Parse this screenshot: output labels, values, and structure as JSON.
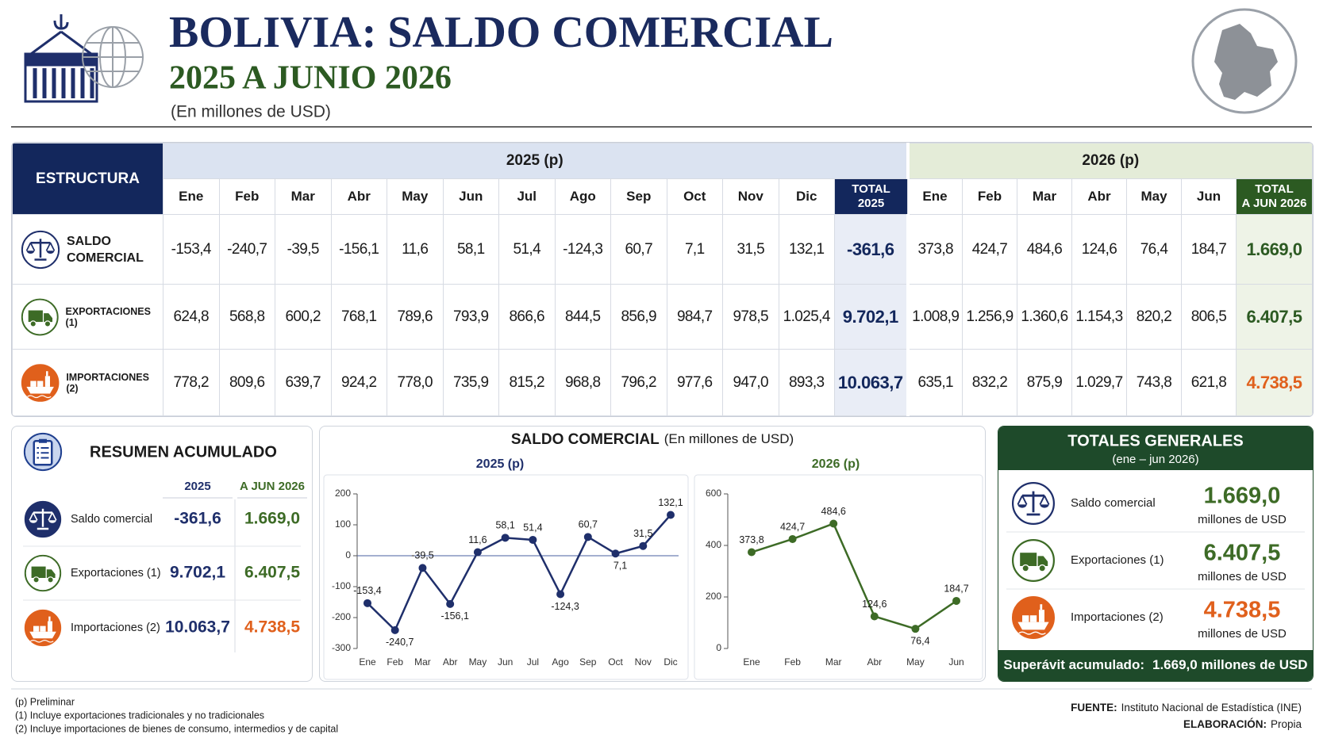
{
  "header": {
    "title": "BOLIVIA: SALDO COMERCIAL",
    "subtitle": "2025 A JUNIO 2026",
    "unit": "(En millones de USD)"
  },
  "table": {
    "corner": "ESTRUCTURA",
    "groups": [
      {
        "label": "2025 (p)",
        "months": [
          "Ene",
          "Feb",
          "Mar",
          "Abr",
          "May",
          "Jun",
          "Jul",
          "Ago",
          "Sep",
          "Oct",
          "Nov",
          "Dic"
        ],
        "total_label": [
          "TOTAL",
          "2025"
        ]
      },
      {
        "label": "2026 (p)",
        "months": [
          "Ene",
          "Feb",
          "Mar",
          "Abr",
          "May",
          "Jun"
        ],
        "total_label": [
          "TOTAL",
          "A JUN 2026"
        ]
      }
    ],
    "rows": [
      {
        "label": [
          "SALDO",
          "COMERCIAL"
        ],
        "values": [
          [
            "-153,4",
            "-240,7",
            "-39,5",
            "-156,1",
            "11,6",
            "58,1",
            "51,4",
            "-124,3",
            "60,7",
            "7,1",
            "31,5",
            "132,1"
          ],
          [
            "373,8",
            "424,7",
            "484,6",
            "124,6",
            "76,4",
            "184,7"
          ]
        ],
        "totals": [
          "-361,6",
          "1.669,0"
        ]
      },
      {
        "label": [
          "EXPORTACIONES (1)"
        ],
        "values": [
          [
            "624,8",
            "568,8",
            "600,2",
            "768,1",
            "789,6",
            "793,9",
            "866,6",
            "844,5",
            "856,9",
            "984,7",
            "978,5",
            "1.025,4"
          ],
          [
            "1.008,9",
            "1.256,9",
            "1.360,6",
            "1.154,3",
            "820,2",
            "806,5"
          ]
        ],
        "totals": [
          "9.702,1",
          "6.407,5"
        ]
      },
      {
        "label": [
          "IMPORTACIONES (2)"
        ],
        "values": [
          [
            "778,2",
            "809,6",
            "639,7",
            "924,2",
            "778,0",
            "735,9",
            "815,2",
            "968,8",
            "796,2",
            "977,6",
            "947,0",
            "893,3"
          ],
          [
            "635,1",
            "832,2",
            "875,9",
            "1.029,7",
            "743,8",
            "621,8"
          ]
        ],
        "totals": [
          "10.063,7",
          "4.738,5"
        ]
      }
    ]
  },
  "summary": {
    "title": "RESUMEN ACUMULADO",
    "columns": [
      "2025",
      "A JUN 2026"
    ],
    "rows": [
      {
        "label": "Saldo comercial",
        "values": [
          "-361,6",
          "1.669,0"
        ]
      },
      {
        "label": "Exportaciones (1)",
        "values": [
          "9.702,1",
          "6.407,5"
        ]
      },
      {
        "label": "Importaciones (2)",
        "values": [
          "10.063,7",
          "4.738,5"
        ]
      }
    ]
  },
  "chart_panel": {
    "title": "SALDO COMERCIAL",
    "unit": "(En millones de USD)"
  },
  "chart_data": [
    {
      "type": "line",
      "title": "2025 (p)",
      "categories": [
        "Ene",
        "Feb",
        "Mar",
        "Abr",
        "May",
        "Jun",
        "Jul",
        "Ago",
        "Sep",
        "Oct",
        "Nov",
        "Dic"
      ],
      "values": [
        -153.4,
        -240.7,
        -39.5,
        -156.1,
        11.6,
        58.1,
        51.4,
        -124.3,
        60.7,
        7.1,
        31.5,
        132.1
      ],
      "value_labels": [
        "-153,4",
        "-240,7",
        "-39,5",
        "-156,1",
        "11,6",
        "58,1",
        "51,4",
        "-124,3",
        "60,7",
        "7,1",
        "31,5",
        "132,1"
      ],
      "color": "#1f2f6b",
      "ylim": [
        -300,
        200
      ],
      "yticks": [
        -300,
        -200,
        -100,
        0,
        100,
        200
      ]
    },
    {
      "type": "line",
      "title": "2026 (p)",
      "categories": [
        "Ene",
        "Feb",
        "Mar",
        "Abr",
        "May",
        "Jun"
      ],
      "values": [
        373.8,
        424.7,
        484.6,
        124.6,
        76.4,
        184.7
      ],
      "value_labels": [
        "373,8",
        "424,7",
        "484,6",
        "124,6",
        "76,4",
        "184,7"
      ],
      "color": "#3d6b26",
      "ylim": [
        0,
        600
      ],
      "yticks": [
        0,
        200,
        400,
        600
      ]
    }
  ],
  "totals": {
    "title": "TOTALES GENERALES",
    "subtitle": "(ene – jun 2026)",
    "items": [
      {
        "label": "Saldo comercial",
        "value": "1.669,0",
        "unit": "millones de USD"
      },
      {
        "label": "Exportaciones (1)",
        "value": "6.407,5",
        "unit": "millones de USD"
      },
      {
        "label": "Importaciones (2)",
        "value": "4.738,5",
        "unit": "millones de USD"
      }
    ],
    "footer": {
      "label": "Superávit acumulado:",
      "value": "1.669,0 millones de USD"
    }
  },
  "footer": {
    "notes": [
      "(p) Preliminar",
      "(1) Incluye exportaciones tradicionales y no tradicionales",
      "(2) Incluye importaciones de bienes de consumo, intermedios y de capital"
    ],
    "source": {
      "label": "FUENTE:",
      "text": "Instituto Nacional de Estadística (INE)"
    },
    "elaboration": {
      "label": "ELABORACIÓN:",
      "text": "Propia"
    }
  }
}
